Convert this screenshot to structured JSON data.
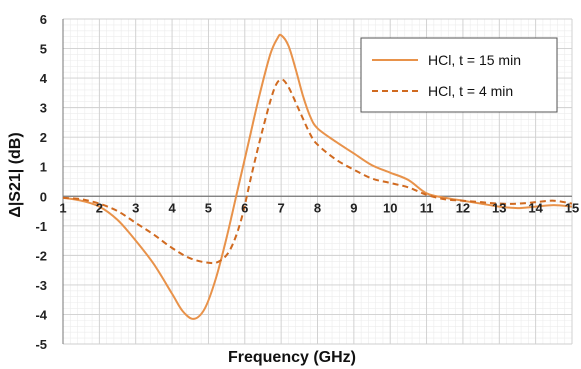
{
  "chart_data": {
    "type": "line",
    "xlabel": "Frequency (GHz)",
    "ylabel": "Δ|S21| (dB)",
    "xlim": [
      1,
      15
    ],
    "ylim": [
      -5,
      6
    ],
    "xticks": [
      "1",
      "2",
      "3",
      "4",
      "5",
      "6",
      "7",
      "8",
      "9",
      "10",
      "11",
      "12",
      "13",
      "14",
      "15"
    ],
    "yticks": [
      "6",
      "5",
      "4",
      "3",
      "2",
      "1",
      "0",
      "-1",
      "-2",
      "-3",
      "-4",
      "-5"
    ],
    "grid": true,
    "legend_position": "top-right",
    "series": [
      {
        "name": "HCl, t = 15 min",
        "color": "#E8924A",
        "dash": "solid",
        "x": [
          1,
          1.5,
          2,
          2.5,
          3,
          3.5,
          4,
          4.3,
          4.6,
          4.9,
          5.2,
          5.5,
          5.8,
          6.1,
          6.4,
          6.7,
          6.9,
          7.0,
          7.2,
          7.4,
          7.6,
          7.8,
          8,
          8.5,
          9,
          9.5,
          10,
          10.5,
          11,
          11.5,
          12,
          12.5,
          13,
          13.5,
          14,
          14.5,
          15
        ],
        "y": [
          -0.05,
          -0.15,
          -0.35,
          -0.8,
          -1.5,
          -2.3,
          -3.3,
          -3.9,
          -4.15,
          -3.8,
          -2.8,
          -1.4,
          0.2,
          1.8,
          3.4,
          4.8,
          5.35,
          5.45,
          5.1,
          4.3,
          3.4,
          2.7,
          2.3,
          1.85,
          1.45,
          1.05,
          0.8,
          0.55,
          0.1,
          -0.05,
          -0.15,
          -0.25,
          -0.35,
          -0.4,
          -0.35,
          -0.3,
          -0.35
        ]
      },
      {
        "name": "HCl, t = 4 min",
        "color": "#D06A20",
        "dash": "dashed",
        "x": [
          1,
          1.5,
          2,
          2.5,
          3,
          3.5,
          4,
          4.5,
          5,
          5.3,
          5.6,
          5.9,
          6.2,
          6.5,
          6.8,
          7.0,
          7.2,
          7.5,
          7.8,
          8,
          8.5,
          9,
          9.5,
          10,
          10.5,
          11,
          11.5,
          12,
          12.5,
          13,
          13.5,
          14,
          14.5,
          15
        ],
        "y": [
          -0.05,
          -0.1,
          -0.25,
          -0.5,
          -0.9,
          -1.3,
          -1.75,
          -2.1,
          -2.25,
          -2.2,
          -1.8,
          -0.8,
          0.8,
          2.3,
          3.6,
          3.95,
          3.7,
          2.9,
          2.1,
          1.75,
          1.25,
          0.9,
          0.6,
          0.45,
          0.3,
          0.05,
          -0.1,
          -0.15,
          -0.2,
          -0.25,
          -0.25,
          -0.2,
          -0.15,
          -0.25
        ]
      }
    ]
  }
}
